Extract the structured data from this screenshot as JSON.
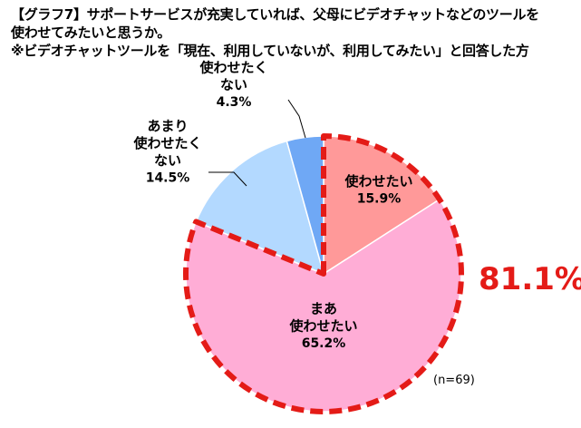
{
  "title": {
    "line1": "【グラフ7】サポートサービスが充実していれば、父母にビデオチャットなどのツールを",
    "line2": "使わせてみたいと思うか。",
    "line3": "※ビデオチャットツールを「現在、利用していないが、利用してみたい」と回答した方"
  },
  "highlight_total": "81.1%",
  "sample_note": "(n=69)",
  "colors": {
    "slice1": "#ff9999",
    "slice2": "#ffadd6",
    "slice3": "#b3d9ff",
    "slice4": "#6fa8f5",
    "highlight": "#e41b17"
  },
  "chart_data": {
    "type": "pie",
    "title": "",
    "slices": [
      {
        "label_lines": [
          "使わせたい"
        ],
        "value": 15.9,
        "value_label": "15.9%",
        "highlighted": true
      },
      {
        "label_lines": [
          "まあ",
          "使わせたい"
        ],
        "value": 65.2,
        "value_label": "65.2%",
        "highlighted": true
      },
      {
        "label_lines": [
          "あまり",
          "使わせたく",
          "ない"
        ],
        "value": 14.5,
        "value_label": "14.5%",
        "highlighted": false
      },
      {
        "label_lines": [
          "使わせたく",
          "ない"
        ],
        "value": 4.3,
        "value_label": "4.3%",
        "highlighted": false
      }
    ],
    "start_angle": "12 o'clock",
    "direction": "clockwise"
  }
}
